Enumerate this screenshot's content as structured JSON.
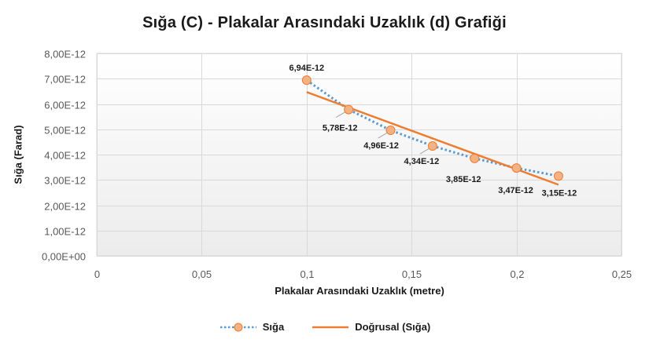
{
  "chart_data": {
    "type": "scatter",
    "title": "Sığa (C) - Plakalar Arasındaki Uzaklık (d) Grafiği",
    "xlabel": "Plakalar Arasındaki Uzaklık (metre)",
    "ylabel": "Sığa (Farad)",
    "xlim": [
      0,
      0.25
    ],
    "ylim": [
      0,
      8e-12
    ],
    "x_ticks": [
      0,
      0.05,
      0.1,
      0.15,
      0.2,
      0.25
    ],
    "x_tick_labels": [
      "0",
      "0,05",
      "0,1",
      "0,15",
      "0,2",
      "0,25"
    ],
    "y_ticks": [
      0,
      1e-12,
      2e-12,
      3e-12,
      4e-12,
      5e-12,
      6e-12,
      7e-12,
      8e-12
    ],
    "y_tick_labels": [
      "0,00E+00",
      "1,00E-12",
      "2,00E-12",
      "3,00E-12",
      "4,00E-12",
      "5,00E-12",
      "6,00E-12",
      "7,00E-12",
      "8,00E-12"
    ],
    "grid": true,
    "legend_position": "bottom",
    "series": [
      {
        "name": "Sığa",
        "style": "dotted-line-with-markers",
        "line_color": "#5b9bd5",
        "marker_color": "#f4b183",
        "marker_edge": "#ed7d31",
        "x": [
          0.1,
          0.12,
          0.14,
          0.16,
          0.18,
          0.2,
          0.22
        ],
        "y": [
          6.94e-12,
          5.78e-12,
          4.96e-12,
          4.34e-12,
          3.85e-12,
          3.47e-12,
          3.15e-12
        ],
        "data_labels": [
          "6,94E-12",
          "5,78E-12",
          "4,96E-12",
          "4,34E-12",
          "3,85E-12",
          "3,47E-12",
          "3,15E-12"
        ]
      },
      {
        "name": "Doğrusal (Sığa)",
        "style": "solid-trendline",
        "line_color": "#ed7d31",
        "x": [
          0.1,
          0.22
        ],
        "y": [
          6.47e-12,
          2.81e-12
        ]
      }
    ]
  },
  "legend": {
    "items": [
      {
        "label": "Sığa"
      },
      {
        "label": "Doğrusal (Sığa)"
      }
    ]
  }
}
